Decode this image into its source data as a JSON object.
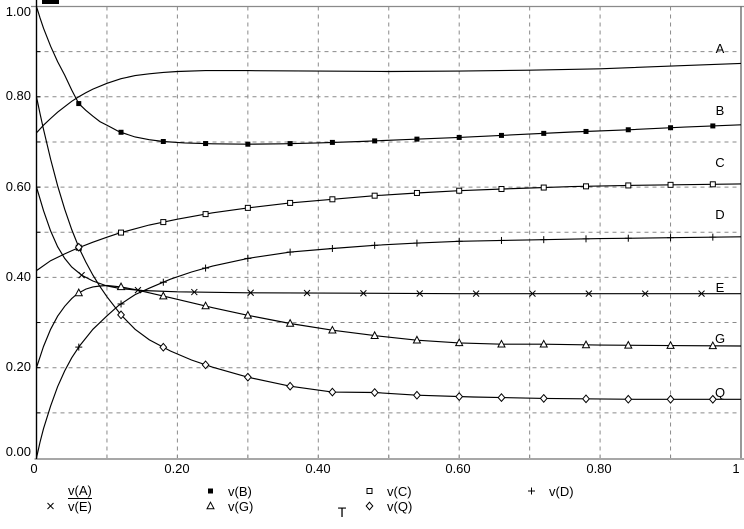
{
  "colors": {
    "background": "#ffffff",
    "trace": "#000000",
    "grid": "#8a8a8a",
    "frame_dark": "#000000",
    "frame_light": "#8a8a8a",
    "text": "#000000"
  },
  "axes": {
    "x_title": "T",
    "x_tick_labels": [
      "0",
      "0.20",
      "0.40",
      "0.60",
      "0.80",
      "1"
    ],
    "y_tick_labels": [
      "1.00",
      "0.80",
      "0.60",
      "0.40",
      "0.20",
      "0.00"
    ]
  },
  "legend": {
    "rows": [
      [
        {
          "marker": "none",
          "label": "v(A)",
          "selected": true
        },
        {
          "marker": "filled-square",
          "label": "v(B)",
          "selected": false
        },
        {
          "marker": "open-square",
          "label": "v(C)",
          "selected": false
        },
        {
          "marker": "plus",
          "label": "v(D)",
          "selected": false
        }
      ],
      [
        {
          "marker": "x",
          "label": "v(E)",
          "selected": false
        },
        {
          "marker": "open-triangle",
          "label": "v(G)",
          "selected": false
        },
        {
          "marker": "open-diamond",
          "label": "v(Q)",
          "selected": false
        }
      ]
    ]
  },
  "chart_data": {
    "type": "line",
    "title": "",
    "xlabel": "T",
    "ylabel": "",
    "xlim": [
      0,
      1
    ],
    "ylim": [
      0,
      1
    ],
    "grid": true,
    "grid_step": 0.1,
    "x_tick_values": [
      0,
      0.2,
      0.4,
      0.6,
      0.8,
      1
    ],
    "y_tick_values": [
      1.0,
      0.8,
      0.6,
      0.4,
      0.2,
      0.0
    ],
    "legend_position": "bottom",
    "series": [
      {
        "name": "v(A)",
        "label": "A",
        "marker": "none",
        "label_v": 0.905,
        "points": [
          [
            0,
            0.72
          ],
          [
            0.01,
            0.737
          ],
          [
            0.02,
            0.752
          ],
          [
            0.03,
            0.766
          ],
          [
            0.04,
            0.778
          ],
          [
            0.05,
            0.79
          ],
          [
            0.06,
            0.8
          ],
          [
            0.07,
            0.809
          ],
          [
            0.08,
            0.817
          ],
          [
            0.1,
            0.83
          ],
          [
            0.12,
            0.84
          ],
          [
            0.14,
            0.847
          ],
          [
            0.16,
            0.851
          ],
          [
            0.18,
            0.854
          ],
          [
            0.2,
            0.856
          ],
          [
            0.24,
            0.858
          ],
          [
            0.3,
            0.858
          ],
          [
            0.4,
            0.857
          ],
          [
            0.5,
            0.856
          ],
          [
            0.6,
            0.857
          ],
          [
            0.7,
            0.859
          ],
          [
            0.8,
            0.862
          ],
          [
            0.9,
            0.868
          ],
          [
            1.0,
            0.874
          ]
        ]
      },
      {
        "name": "v(B)",
        "label": "B",
        "marker": "filled-square",
        "label_v": 0.768,
        "marker_start": 0.06,
        "marker_every": 0.06,
        "points": [
          [
            0,
            1.0
          ],
          [
            0.005,
            0.975
          ],
          [
            0.01,
            0.952
          ],
          [
            0.02,
            0.912
          ],
          [
            0.03,
            0.878
          ],
          [
            0.04,
            0.848
          ],
          [
            0.05,
            0.815
          ],
          [
            0.06,
            0.785
          ],
          [
            0.07,
            0.77
          ],
          [
            0.08,
            0.757
          ],
          [
            0.09,
            0.745
          ],
          [
            0.1,
            0.737
          ],
          [
            0.117,
            0.723
          ],
          [
            0.14,
            0.711
          ],
          [
            0.16,
            0.705
          ],
          [
            0.18,
            0.701
          ],
          [
            0.21,
            0.698
          ],
          [
            0.25,
            0.696
          ],
          [
            0.3,
            0.695
          ],
          [
            0.35,
            0.696
          ],
          [
            0.4,
            0.698
          ],
          [
            0.46,
            0.701
          ],
          [
            0.52,
            0.705
          ],
          [
            0.6,
            0.71
          ],
          [
            0.68,
            0.716
          ],
          [
            0.76,
            0.722
          ],
          [
            0.84,
            0.727
          ],
          [
            0.92,
            0.733
          ],
          [
            1.0,
            0.738
          ]
        ]
      },
      {
        "name": "v(C)",
        "label": "C",
        "marker": "open-square",
        "label_v": 0.653,
        "marker_start": 0.06,
        "marker_every": 0.06,
        "points": [
          [
            0,
            0.415
          ],
          [
            0.02,
            0.437
          ],
          [
            0.04,
            0.452
          ],
          [
            0.057,
            0.464
          ],
          [
            0.08,
            0.478
          ],
          [
            0.1,
            0.489
          ],
          [
            0.117,
            0.498
          ],
          [
            0.16,
            0.516
          ],
          [
            0.2,
            0.529
          ],
          [
            0.25,
            0.543
          ],
          [
            0.3,
            0.554
          ],
          [
            0.36,
            0.565
          ],
          [
            0.42,
            0.573
          ],
          [
            0.48,
            0.581
          ],
          [
            0.54,
            0.587
          ],
          [
            0.6,
            0.592
          ],
          [
            0.68,
            0.597
          ],
          [
            0.76,
            0.601
          ],
          [
            0.85,
            0.604
          ],
          [
            1.0,
            0.607
          ]
        ]
      },
      {
        "name": "v(D)",
        "label": "D",
        "marker": "plus",
        "label_v": 0.538,
        "marker_start": 0.06,
        "marker_every": 0.06,
        "points": [
          [
            0,
            0.0
          ],
          [
            0.005,
            0.035
          ],
          [
            0.01,
            0.065
          ],
          [
            0.02,
            0.115
          ],
          [
            0.03,
            0.158
          ],
          [
            0.04,
            0.193
          ],
          [
            0.05,
            0.222
          ],
          [
            0.061,
            0.248
          ],
          [
            0.08,
            0.285
          ],
          [
            0.1,
            0.315
          ],
          [
            0.116,
            0.337
          ],
          [
            0.14,
            0.362
          ],
          [
            0.16,
            0.376
          ],
          [
            0.19,
            0.396
          ],
          [
            0.22,
            0.412
          ],
          [
            0.25,
            0.425
          ],
          [
            0.3,
            0.442
          ],
          [
            0.36,
            0.456
          ],
          [
            0.42,
            0.464
          ],
          [
            0.48,
            0.471
          ],
          [
            0.54,
            0.476
          ],
          [
            0.6,
            0.48
          ],
          [
            0.7,
            0.483
          ],
          [
            0.8,
            0.486
          ],
          [
            0.9,
            0.488
          ],
          [
            1.0,
            0.49
          ]
        ]
      },
      {
        "name": "v(E)",
        "label": "E",
        "marker": "x",
        "label_v": 0.376,
        "marker_start": 0.064,
        "marker_every": 0.08,
        "points": [
          [
            0,
            0.6
          ],
          [
            0.01,
            0.548
          ],
          [
            0.02,
            0.503
          ],
          [
            0.03,
            0.468
          ],
          [
            0.04,
            0.442
          ],
          [
            0.05,
            0.423
          ],
          [
            0.064,
            0.405
          ],
          [
            0.08,
            0.392
          ],
          [
            0.1,
            0.381
          ],
          [
            0.12,
            0.375
          ],
          [
            0.15,
            0.371
          ],
          [
            0.2,
            0.368
          ],
          [
            0.3,
            0.366
          ],
          [
            0.45,
            0.365
          ],
          [
            0.6,
            0.364
          ],
          [
            0.8,
            0.364
          ],
          [
            1.0,
            0.364
          ]
        ]
      },
      {
        "name": "v(G)",
        "label": "G",
        "marker": "open-triangle",
        "label_v": 0.263,
        "marker_start": 0.06,
        "marker_every": 0.06,
        "points": [
          [
            0,
            0.2
          ],
          [
            0.01,
            0.247
          ],
          [
            0.02,
            0.285
          ],
          [
            0.03,
            0.314
          ],
          [
            0.04,
            0.336
          ],
          [
            0.05,
            0.353
          ],
          [
            0.058,
            0.364
          ],
          [
            0.07,
            0.374
          ],
          [
            0.08,
            0.379
          ],
          [
            0.09,
            0.381
          ],
          [
            0.1,
            0.382
          ],
          [
            0.12,
            0.379
          ],
          [
            0.14,
            0.373
          ],
          [
            0.16,
            0.366
          ],
          [
            0.19,
            0.355
          ],
          [
            0.22,
            0.344
          ],
          [
            0.25,
            0.333
          ],
          [
            0.3,
            0.316
          ],
          [
            0.36,
            0.298
          ],
          [
            0.42,
            0.283
          ],
          [
            0.48,
            0.271
          ],
          [
            0.54,
            0.261
          ],
          [
            0.6,
            0.255
          ],
          [
            0.66,
            0.252
          ],
          [
            0.72,
            0.252
          ],
          [
            0.8,
            0.25
          ],
          [
            0.9,
            0.249
          ],
          [
            1.0,
            0.248
          ]
        ]
      },
      {
        "name": "v(Q)",
        "label": "Q",
        "marker": "open-diamond",
        "label_v": 0.144,
        "marker_start": 0.06,
        "marker_every": 0.06,
        "points": [
          [
            0,
            0.8
          ],
          [
            0.005,
            0.763
          ],
          [
            0.01,
            0.728
          ],
          [
            0.02,
            0.662
          ],
          [
            0.03,
            0.603
          ],
          [
            0.04,
            0.551
          ],
          [
            0.05,
            0.506
          ],
          [
            0.061,
            0.463
          ],
          [
            0.07,
            0.434
          ],
          [
            0.08,
            0.405
          ],
          [
            0.09,
            0.38
          ],
          [
            0.1,
            0.357
          ],
          [
            0.12,
            0.317
          ],
          [
            0.14,
            0.285
          ],
          [
            0.16,
            0.262
          ],
          [
            0.19,
            0.237
          ],
          [
            0.22,
            0.217
          ],
          [
            0.25,
            0.201
          ],
          [
            0.3,
            0.179
          ],
          [
            0.36,
            0.159
          ],
          [
            0.42,
            0.146
          ],
          [
            0.48,
            0.145
          ],
          [
            0.54,
            0.139
          ],
          [
            0.62,
            0.135
          ],
          [
            0.72,
            0.132
          ],
          [
            0.85,
            0.13
          ],
          [
            1.0,
            0.13
          ]
        ]
      }
    ]
  }
}
